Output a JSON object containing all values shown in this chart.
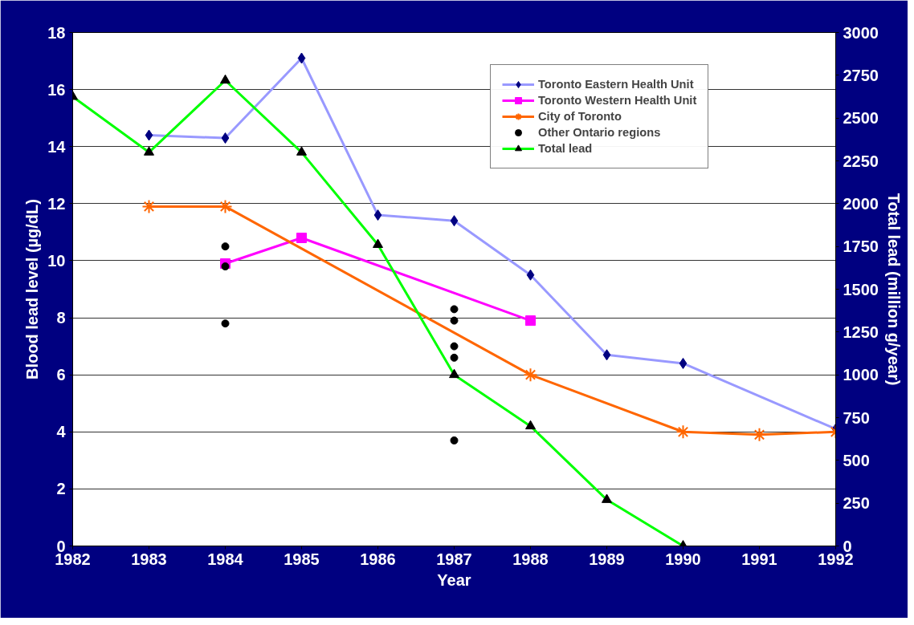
{
  "chart_data": {
    "type": "line",
    "xlabel": "Year",
    "ylabel": "Blood lead level (µg/dL)",
    "y2label": "Total lead (million g/year)",
    "xlim": [
      1982,
      1992
    ],
    "xticks": [
      1982,
      1983,
      1984,
      1985,
      1986,
      1987,
      1988,
      1989,
      1990,
      1991,
      1992
    ],
    "ylim": [
      0,
      18
    ],
    "yticks": [
      0,
      2,
      4,
      6,
      8,
      10,
      12,
      14,
      16,
      18
    ],
    "y2lim": [
      0,
      3000
    ],
    "y2ticks": [
      0,
      250,
      500,
      750,
      1000,
      1250,
      1500,
      1750,
      2000,
      2250,
      2500,
      2750,
      3000
    ],
    "grid": "y",
    "legend": "top right",
    "series": [
      {
        "name": "Toronto Eastern Health Unit",
        "marker": "diamond",
        "color": "#9999ff",
        "colors": [
          "#000080",
          "#000080",
          "#000080",
          "#000080",
          "#000080",
          "#000080",
          "#000080",
          "#000080",
          "#000080"
        ],
        "x": [
          1983,
          1984,
          1985,
          1986,
          1987,
          1988,
          1989,
          1990,
          1992
        ],
        "values": [
          14.4,
          14.3,
          17.1,
          11.6,
          11.4,
          9.5,
          6.7,
          6.4,
          4.1
        ]
      },
      {
        "name": "Toronto Western Health Unit",
        "marker": "square",
        "color": "#ff00ff",
        "x": [
          1984,
          1985,
          1988
        ],
        "values": [
          9.9,
          10.8,
          7.9
        ]
      },
      {
        "name": "City of Toronto",
        "marker": "cross",
        "color": "#ff6600",
        "x": [
          1983,
          1984,
          1988,
          1990,
          1991,
          1992
        ],
        "values": [
          11.9,
          11.9,
          6.0,
          4.0,
          3.9,
          4.0
        ]
      },
      {
        "name": "Other Ontario regions",
        "type": "scatter",
        "marker": "circle",
        "color": "#000000",
        "x": [
          1984,
          1984,
          1984,
          1987,
          1987,
          1987,
          1987,
          1987
        ],
        "values": [
          10.5,
          9.8,
          7.8,
          8.3,
          7.9,
          7.0,
          6.6,
          3.7
        ]
      },
      {
        "name": "Total lead",
        "marker": "triangle",
        "axis": "y2",
        "color": "#00ff00",
        "colors": [
          "#000000",
          "#000000",
          "#000000",
          "#000000",
          "#000000",
          "#000000",
          "#000000",
          "#000000",
          "#000000"
        ],
        "x": [
          1982,
          1983,
          1984,
          1985,
          1986,
          1987,
          1988,
          1989,
          1990
        ],
        "values": [
          2625,
          2300,
          2720,
          2300,
          1760,
          1000,
          700,
          270,
          0
        ]
      }
    ]
  }
}
